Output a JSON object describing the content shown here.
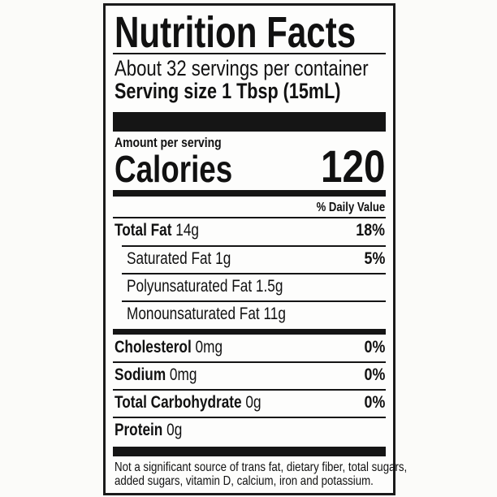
{
  "title": "Nutrition Facts",
  "servings_per_container": "About 32 servings per container",
  "serving_size": {
    "label": "Serving size",
    "value": "1 Tbsp (15mL)"
  },
  "amount_per_serving": "Amount per serving",
  "calories": {
    "label": "Calories",
    "value": "120"
  },
  "daily_value_header": "% Daily Value",
  "nutrients": [
    {
      "label": "Total Fat",
      "amount": "14g",
      "dv": "18%"
    },
    {
      "label": "Saturated Fat",
      "amount": "1g",
      "dv": "5%"
    },
    {
      "label": "Polyunsaturated Fat",
      "amount": "1.5g",
      "dv": ""
    },
    {
      "label": "Monounsaturated Fat",
      "amount": "11g",
      "dv": ""
    },
    {
      "label": "Cholesterol",
      "amount": "0mg",
      "dv": "0%"
    },
    {
      "label": "Sodium",
      "amount": "0mg",
      "dv": "0%"
    },
    {
      "label": "Total Carbohydrate",
      "amount": "0g",
      "dv": "0%"
    },
    {
      "label": "Protein",
      "amount": "0g",
      "dv": ""
    }
  ],
  "footnote": [
    "Not a significant source of trans fat, dietary fiber, total sugars,",
    "added sugars, vitamin D, calcium, iron and potassium."
  ]
}
